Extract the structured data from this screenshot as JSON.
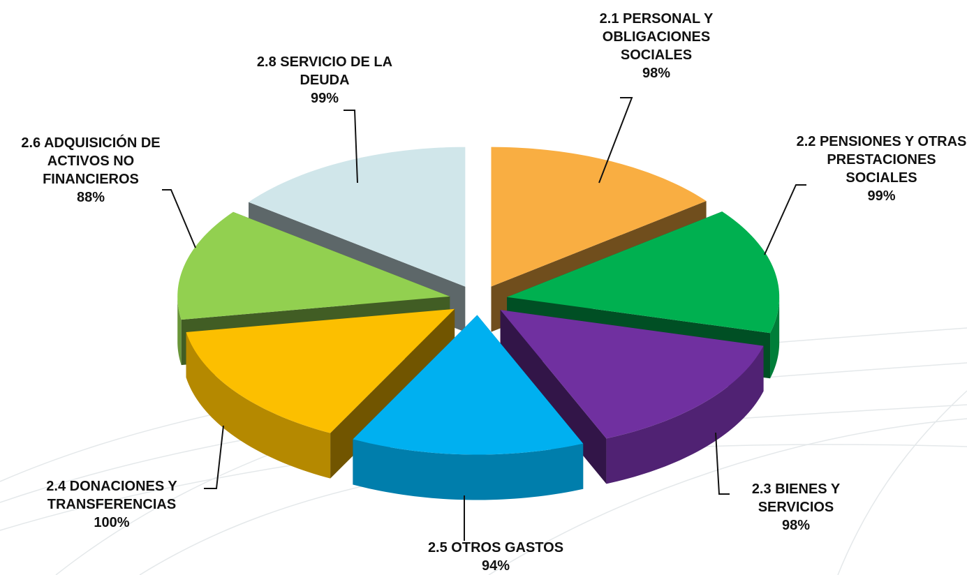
{
  "chart_data": {
    "type": "pie",
    "categories": [
      "2.1  PERSONAL Y OBLIGACIONES SOCIALES",
      "2.2  PENSIONES Y OTRAS PRESTACIONES SOCIALES",
      "2.3  BIENES Y SERVICIOS",
      "2.5 OTROS GASTOS",
      "2.4  DONACIONES Y TRANSFERENCIAS",
      "2.6  ADQUISICIÓN DE ACTIVOS NO FINANCIEROS",
      "2.8  SERVICIO DE LA DEUDA"
    ],
    "values": [
      98,
      99,
      98,
      94,
      100,
      88,
      99
    ],
    "value_labels": [
      "98%",
      "99%",
      "98%",
      "94%",
      "100%",
      "88%",
      "99%"
    ],
    "colors": [
      "#f9ae42",
      "#00b050",
      "#7030a0",
      "#00b0f0",
      "#fcbf00",
      "#92d050",
      "#d0e6ea"
    ]
  }
}
